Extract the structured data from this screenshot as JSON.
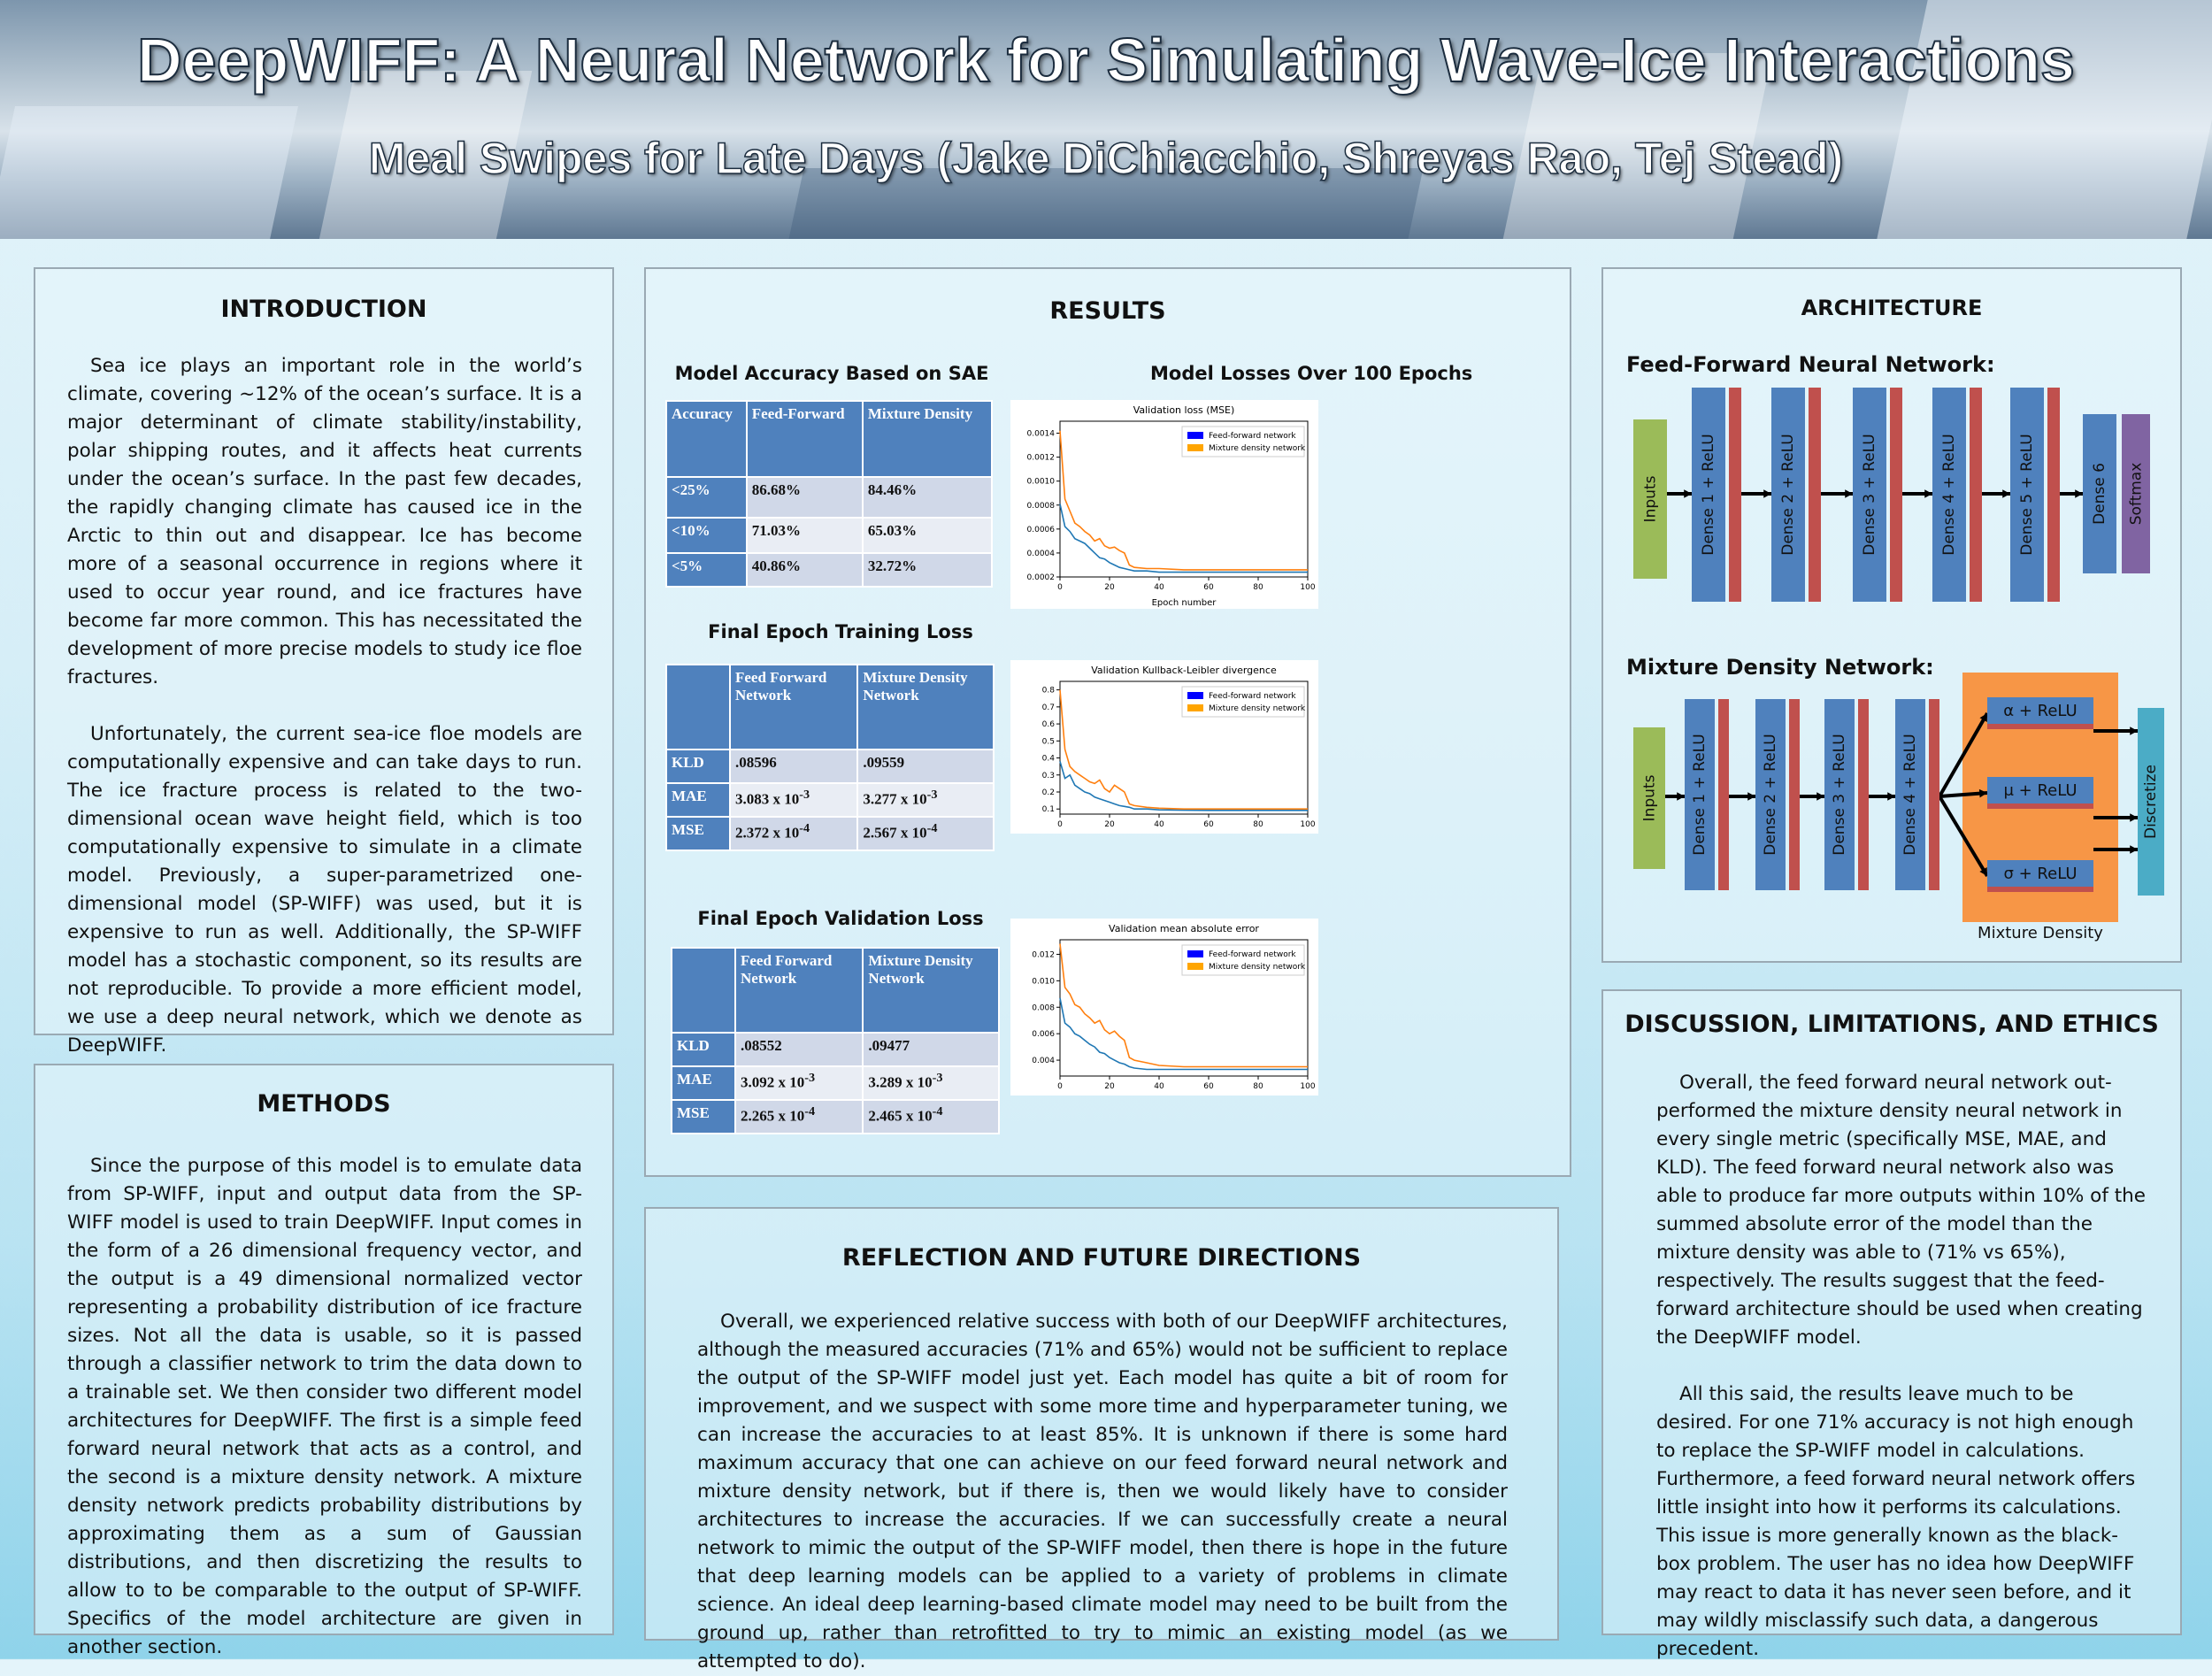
{
  "header": {
    "title": "DeepWIFF: A Neural Network for Simulating Wave-Ice Interactions",
    "subtitle": "Meal Swipes for Late Days (Jake DiChiacchio, Shreyas Rao, Tej Stead)"
  },
  "introduction": {
    "heading": "INTRODUCTION",
    "p1": "Sea ice plays an important role in the world’s climate, covering ~12% of the ocean’s surface. It is a major determinant of climate stability/instability, polar shipping routes, and it affects heat currents under the ocean’s surface. In the past few decades, the rapidly changing climate has caused ice in the Arctic to thin out and disappear. Ice has become more of a seasonal occurrence in regions where it used to occur year round, and ice fractures have become far more common. This has necessitated the development of more precise models to study ice floe fractures.",
    "p2": "Unfortunately, the current sea-ice floe models are computationally expensive and can take days to run. The ice fracture process is related to the two-dimensional ocean wave height field, which is too computationally expensive to simulate in a climate model. Previously, a super-parametrized one-dimensional model (SP-WIFF) was used, but it is expensive to run as well. Additionally, the SP-WIFF model has a stochastic component, so its results are not reproducible. To provide a more efficient model, we use a deep neural network, which we denote as DeepWIFF."
  },
  "methods": {
    "heading": "METHODS",
    "p1": "Since the purpose of this model is to emulate data from SP-WIFF, input and output data from the SP-WIFF model is used to train DeepWIFF. Input comes in the form of a 26 dimensional frequency vector, and the output is a 49 dimensional normalized vector representing a probability distribution of ice fracture sizes. Not all the data is usable, so it is passed through a classifier network to trim the data down to a trainable set. We then consider two different model architectures for DeepWIFF. The first is a simple feed forward neural network that acts as a control, and the second is a mixture density network. A mixture density network predicts probability distributions by approximating them as a sum of Gaussian distributions, and then discretizing the results to allow to to be comparable to the output of SP-WIFF. Specifics of the model architecture are given  in another section."
  },
  "results": {
    "heading": "RESULTS",
    "acc_title": "Model Accuracy Based on SAE",
    "acc_header": [
      "Accuracy",
      "Feed-Forward",
      "Mixture Density"
    ],
    "acc_rows": [
      [
        "<25%",
        "86.68%",
        "84.46%"
      ],
      [
        "<10%",
        "71.03%",
        "65.03%"
      ],
      [
        "<5%",
        "40.86%",
        "32.72%"
      ]
    ],
    "train_title": "Final Epoch Training Loss",
    "val_title": "Final Epoch Validation Loss",
    "loss_header": [
      "",
      "Feed Forward Network",
      "Mixture Density Network"
    ],
    "train_rows": [
      {
        "label": "KLD",
        "ff": ".08596",
        "md": ".09559"
      },
      {
        "label": "MAE",
        "ff": "3.083 x 10",
        "ffe": "-3",
        "md": "3.277 x 10",
        "mde": "-3"
      },
      {
        "label": "MSE",
        "ff": "2.372 x 10",
        "ffe": "-4",
        "md": "2.567 x 10",
        "mde": "-4"
      }
    ],
    "val_rows": [
      {
        "label": "KLD",
        "ff": ".08552",
        "md": ".09477"
      },
      {
        "label": "MAE",
        "ff": "3.092 x 10",
        "ffe": "-3",
        "md": "3.289 x 10",
        "mde": "-3"
      },
      {
        "label": "MSE",
        "ff": "2.265 x 10",
        "ffe": "-4",
        "md": "2.465 x 10",
        "mde": "-4"
      }
    ],
    "losses_title": "Model Losses Over 100 Epochs"
  },
  "chart_data": [
    {
      "type": "line",
      "title": "Validation loss (MSE)",
      "xlabel": "Epoch number",
      "ylabel": "",
      "xlim": [
        0,
        100
      ],
      "ylim": [
        0.0002,
        0.0015
      ],
      "xticks": [
        "0",
        "20",
        "40",
        "60",
        "80",
        "100"
      ],
      "yticks": [
        "0.0002",
        "0.0004",
        "0.0006",
        "0.0008",
        "0.0010",
        "0.0012",
        "0.0014"
      ],
      "ytick_values": [
        0.0002,
        0.0004,
        0.0006,
        0.0008,
        0.001,
        0.0012,
        0.0014
      ],
      "legend": [
        "Feed-forward network",
        "Mixture density network"
      ],
      "x": [
        0,
        2,
        4,
        6,
        8,
        10,
        12,
        14,
        16,
        18,
        20,
        22,
        24,
        26,
        28,
        30,
        35,
        40,
        50,
        60,
        70,
        80,
        90,
        100
      ],
      "series": [
        {
          "name": "Feed-forward network",
          "color": "#1f77b4",
          "values": [
            0.00081,
            0.00062,
            0.00058,
            0.00052,
            0.0005,
            0.00048,
            0.00044,
            0.0004,
            0.00036,
            0.00035,
            0.00032,
            0.0003,
            0.00028,
            0.00027,
            0.00026,
            0.00025,
            0.00025,
            0.00024,
            0.00024,
            0.00024,
            0.00024,
            0.00024,
            0.00024,
            0.00024
          ]
        },
        {
          "name": "Mixture density network",
          "color": "#ff7f0e",
          "values": [
            0.00142,
            0.00085,
            0.00075,
            0.00065,
            0.00062,
            0.00058,
            0.00055,
            0.0005,
            0.00052,
            0.00046,
            0.00044,
            0.00045,
            0.00042,
            0.0004,
            0.0003,
            0.00028,
            0.00027,
            0.00027,
            0.00026,
            0.00026,
            0.00026,
            0.00026,
            0.00026,
            0.00026
          ]
        }
      ]
    },
    {
      "type": "line",
      "title": "Validation Kullback-Leibler divergence",
      "xlabel": "",
      "ylabel": "",
      "xlim": [
        0,
        100
      ],
      "ylim": [
        0.07,
        0.85
      ],
      "xticks": [
        "0",
        "20",
        "40",
        "60",
        "80",
        "100"
      ],
      "yticks": [
        "0.1",
        "0.2",
        "0.3",
        "0.4",
        "0.5",
        "0.6",
        "0.7",
        "0.8"
      ],
      "ytick_values": [
        0.1,
        0.2,
        0.3,
        0.4,
        0.5,
        0.6,
        0.7,
        0.8
      ],
      "legend": [
        "Feed-forward network",
        "Mixture density network"
      ],
      "x": [
        0,
        2,
        4,
        6,
        8,
        10,
        12,
        14,
        16,
        18,
        20,
        22,
        24,
        26,
        28,
        30,
        35,
        40,
        50,
        60,
        70,
        80,
        90,
        100
      ],
      "series": [
        {
          "name": "Feed-forward network",
          "color": "#1f77b4",
          "values": [
            0.38,
            0.28,
            0.3,
            0.24,
            0.22,
            0.2,
            0.19,
            0.17,
            0.16,
            0.15,
            0.14,
            0.13,
            0.12,
            0.115,
            0.11,
            0.1,
            0.1,
            0.095,
            0.093,
            0.092,
            0.092,
            0.092,
            0.092,
            0.092
          ]
        },
        {
          "name": "Mixture density network",
          "color": "#ff7f0e",
          "values": [
            0.8,
            0.45,
            0.35,
            0.32,
            0.3,
            0.28,
            0.26,
            0.25,
            0.27,
            0.22,
            0.2,
            0.24,
            0.22,
            0.2,
            0.13,
            0.12,
            0.11,
            0.105,
            0.1,
            0.1,
            0.1,
            0.1,
            0.1,
            0.1
          ]
        }
      ]
    },
    {
      "type": "line",
      "title": "Validation mean absolute error",
      "xlabel": "",
      "ylabel": "",
      "xlim": [
        0,
        100
      ],
      "ylim": [
        0.0028,
        0.0131
      ],
      "xticks": [
        "0",
        "20",
        "40",
        "60",
        "80",
        "100"
      ],
      "yticks": [
        "0.004",
        "0.006",
        "0.008",
        "0.010",
        "0.012"
      ],
      "ytick_values": [
        0.004,
        0.006,
        0.008,
        0.01,
        0.012
      ],
      "legend": [
        "Feed-forward network",
        "Mixture density network"
      ],
      "x": [
        0,
        2,
        4,
        6,
        8,
        10,
        12,
        14,
        16,
        18,
        20,
        22,
        24,
        26,
        28,
        30,
        35,
        40,
        50,
        60,
        70,
        80,
        90,
        100
      ],
      "series": [
        {
          "name": "Feed-forward network",
          "color": "#1f77b4",
          "values": [
            0.0087,
            0.0068,
            0.0065,
            0.006,
            0.0058,
            0.0055,
            0.0052,
            0.005,
            0.0046,
            0.0045,
            0.0042,
            0.004,
            0.0038,
            0.0037,
            0.0035,
            0.0034,
            0.0033,
            0.0033,
            0.0033,
            0.0033,
            0.0033,
            0.0033,
            0.0033,
            0.0033
          ]
        },
        {
          "name": "Mixture density network",
          "color": "#ff7f0e",
          "values": [
            0.0128,
            0.0095,
            0.009,
            0.0082,
            0.008,
            0.0075,
            0.0072,
            0.0068,
            0.007,
            0.0063,
            0.006,
            0.0062,
            0.0058,
            0.0055,
            0.0042,
            0.004,
            0.0038,
            0.0036,
            0.0035,
            0.0035,
            0.0035,
            0.0035,
            0.0035,
            0.0035
          ]
        }
      ]
    }
  ],
  "architecture": {
    "heading": "ARCHITECTURE",
    "ff_title": "Feed-Forward Neural Network:",
    "ff_inputs": "Inputs",
    "ff_dense": [
      "Dense 1 + ReLU",
      "Dense 2 + ReLU",
      "Dense 3 + ReLU",
      "Dense 4 + ReLU",
      "Dense 5 + ReLU"
    ],
    "ff_dense6": "Dense 6",
    "ff_softmax": "Softmax",
    "md_title": "Mixture Density Network:",
    "md_inputs": "Inputs",
    "md_dense": [
      "Dense 1 + ReLU",
      "Dense 2 + ReLU",
      "Dense 3 + ReLU",
      "Dense 4 + ReLU"
    ],
    "md_heads": [
      "α + ReLU",
      "μ + ReLU",
      "σ + ReLU"
    ],
    "md_discretize": "Discretize",
    "md_caption": "Mixture Density"
  },
  "reflection": {
    "heading": "REFLECTION AND FUTURE DIRECTIONS",
    "p1": "Overall, we experienced relative success with both of our DeepWIFF architectures, although the measured accuracies (71% and 65%) would not be sufficient to replace the output of the SP-WIFF model just yet. Each model has quite a bit of room for improvement, and we suspect with some more time and hyperparameter tuning, we can increase the accuracies to at least 85%. It is unknown if there is some hard maximum accuracy that one can achieve on our feed forward neural network and mixture density network, but if there is, then we would likely have to consider architectures to increase the accuracies. If we can successfully create a neural network to mimic the output of the SP-WIFF model, then there is hope in the future that deep learning models can be applied to a variety of problems in climate science. An ideal deep learning-based climate model may need to be built from the ground up, rather than retrofitted to try to mimic an existing model (as we attempted to do)."
  },
  "discussion": {
    "heading": "DISCUSSION, LIMITATIONS, AND ETHICS",
    "p1": "Overall, the feed forward neural network out-performed the mixture density neural network in every single metric (specifically MSE, MAE, and KLD). The feed forward neural network also was able to produce far more outputs within 10% of the summed absolute error of the model than the mixture density was able to (71% vs 65%), respectively. The results suggest that the feed-forward architecture should be used when creating the DeepWIFF model.",
    "p2": "All this said, the results leave much to be desired. For one 71% accuracy is not high enough to replace the SP-WIFF model in calculations. Furthermore, a feed forward neural network offers little insight into how it performs its calculations. This issue is more generally known as the black-box problem. The user has no idea how DeepWIFF may react to data it has never seen before, and it may wildly misclassify such data, a dangerous precedent."
  }
}
